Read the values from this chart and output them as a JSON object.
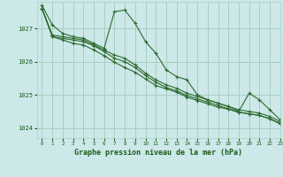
{
  "background_color": "#cce8e8",
  "grid_color": "#a8cfc0",
  "line_color": "#2d6a2d",
  "title": "Graphe pression niveau de la mer (hPa)",
  "title_color": "#1a5c1a",
  "xlim": [
    -0.5,
    23
  ],
  "ylim": [
    1023.7,
    1027.8
  ],
  "yticks": [
    1024,
    1025,
    1026,
    1027
  ],
  "xticks": [
    0,
    1,
    2,
    3,
    4,
    5,
    6,
    7,
    8,
    9,
    10,
    11,
    12,
    13,
    14,
    15,
    16,
    17,
    18,
    19,
    20,
    21,
    22,
    23
  ],
  "series": [
    [
      1027.7,
      1027.1,
      1026.85,
      1026.75,
      1026.7,
      1026.55,
      1026.4,
      1027.5,
      1027.55,
      1027.15,
      1026.6,
      1026.25,
      1025.75,
      1025.55,
      1025.45,
      1025.0,
      1024.85,
      1024.75,
      1024.65,
      1024.5,
      1025.05,
      1024.85,
      1024.55,
      1024.25
    ],
    [
      1027.6,
      1026.8,
      1026.75,
      1026.7,
      1026.65,
      1026.5,
      1026.35,
      1026.2,
      1026.1,
      1025.9,
      1025.65,
      1025.45,
      1025.3,
      1025.2,
      1025.05,
      1024.95,
      1024.85,
      1024.75,
      1024.65,
      1024.55,
      1024.5,
      1024.45,
      1024.35,
      1024.2
    ],
    [
      1027.6,
      1026.75,
      1026.7,
      1026.65,
      1026.6,
      1026.48,
      1026.3,
      1026.1,
      1026.0,
      1025.82,
      1025.58,
      1025.38,
      1025.22,
      1025.12,
      1024.98,
      1024.88,
      1024.78,
      1024.68,
      1024.58,
      1024.48,
      1024.43,
      1024.38,
      1024.28,
      1024.15
    ],
    [
      1027.6,
      1026.75,
      1026.65,
      1026.55,
      1026.5,
      1026.35,
      1026.18,
      1025.98,
      1025.82,
      1025.68,
      1025.48,
      1025.28,
      1025.18,
      1025.08,
      1024.93,
      1024.83,
      1024.73,
      1024.63,
      1024.57,
      1024.47,
      1024.43,
      1024.38,
      1024.28,
      1024.12
    ]
  ]
}
